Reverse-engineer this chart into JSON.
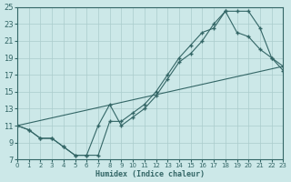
{
  "xlabel": "Humidex (Indice chaleur)",
  "bg_color": "#cce8e8",
  "grid_color": "#aacccc",
  "line_color": "#336666",
  "xlim": [
    0,
    23
  ],
  "ylim": [
    7,
    25
  ],
  "xticks": [
    0,
    1,
    2,
    3,
    4,
    5,
    6,
    7,
    8,
    9,
    10,
    11,
    12,
    13,
    14,
    15,
    16,
    17,
    18,
    19,
    20,
    21,
    22,
    23
  ],
  "yticks": [
    7,
    9,
    11,
    13,
    15,
    17,
    19,
    21,
    23,
    25
  ],
  "curve1_x": [
    0,
    1,
    2,
    3,
    4,
    5,
    6,
    7,
    8,
    9,
    10,
    11,
    12,
    13,
    14,
    15,
    16,
    17,
    18,
    19,
    20,
    21,
    22,
    23
  ],
  "curve1_y": [
    11,
    10.5,
    9.5,
    9.5,
    8.5,
    7.5,
    7.5,
    11.0,
    13.5,
    11.0,
    12.0,
    13.0,
    14.5,
    16.5,
    18.5,
    19.5,
    21.0,
    23.0,
    24.5,
    24.5,
    24.5,
    22.5,
    19.0,
    18.0
  ],
  "curve2_x": [
    0,
    1,
    2,
    3,
    4,
    5,
    6,
    7,
    8,
    9,
    10,
    11,
    12,
    13,
    14,
    15,
    16,
    17,
    18,
    19,
    20,
    21,
    22,
    23
  ],
  "curve2_y": [
    11,
    10.5,
    9.5,
    9.5,
    8.5,
    7.5,
    7.5,
    7.5,
    11.5,
    11.5,
    12.5,
    13.5,
    15.0,
    17.0,
    19.0,
    20.5,
    22.0,
    22.5,
    24.5,
    22.0,
    21.5,
    20.0,
    19.0,
    17.5
  ],
  "line3_x": [
    0,
    23
  ],
  "line3_y": [
    11,
    18
  ]
}
